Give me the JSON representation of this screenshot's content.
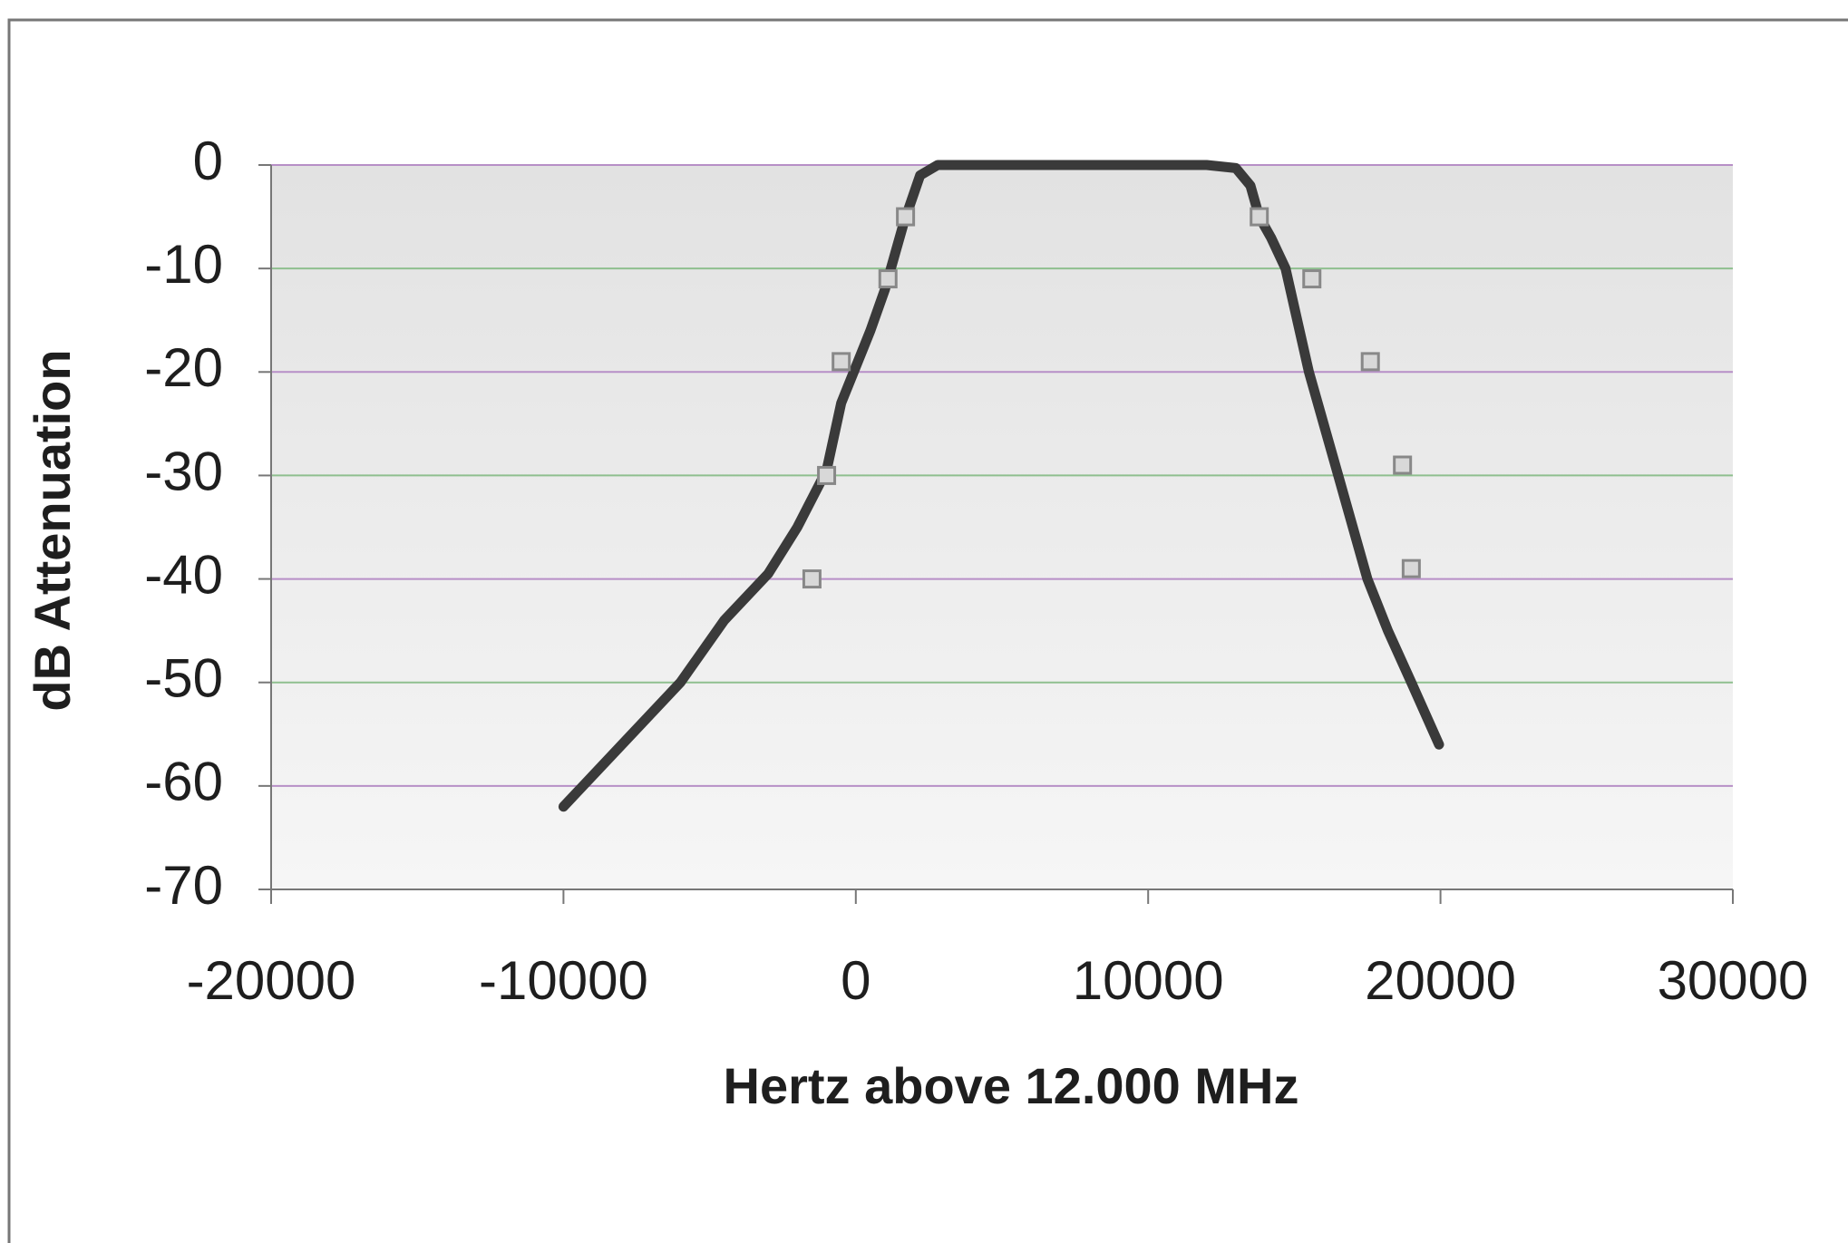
{
  "chart_data": {
    "type": "scatter",
    "xlabel": "Hertz above 12.000 MHz",
    "ylabel": "dB Attenuation",
    "xlim": [
      -20000,
      30000
    ],
    "xticks": [
      -20000,
      -10000,
      0,
      10000,
      20000,
      30000
    ],
    "ylim": [
      -70,
      0
    ],
    "yticks": [
      -70,
      -60,
      -50,
      -40,
      -30,
      -20,
      -10,
      0
    ],
    "grid": true,
    "series": [
      {
        "color": "#3a3a3a",
        "mode": "line",
        "x": [
          -10000,
          -8000,
          -6000,
          -4500,
          -3000,
          -2000,
          -1000,
          -500,
          0,
          500,
          1000,
          1650,
          2200,
          2800,
          4000,
          6000,
          8000,
          10000,
          12000,
          13000,
          13500,
          13800,
          14200,
          14700,
          15500,
          16500,
          17500,
          18200,
          19000,
          19950
        ],
        "values": [
          -62,
          -56,
          -50,
          -44,
          -39.5,
          -35,
          -29.5,
          -23,
          -19.5,
          -16,
          -12,
          -5.5,
          -1,
          0,
          0,
          0,
          0,
          0,
          0,
          -0.3,
          -2,
          -5,
          -7,
          -10,
          -20,
          -30,
          -40,
          -45,
          -50,
          -56
        ]
      },
      {
        "color": "#888888",
        "mode": "markers",
        "marker": "square",
        "x": [
          -1500,
          -1000,
          -500,
          1100,
          1700,
          13800,
          15600,
          17600,
          18700,
          19000
        ],
        "values": [
          -40,
          -30,
          -19,
          -11,
          -5,
          -5,
          -11,
          -19,
          -29,
          -39
        ]
      }
    ]
  }
}
